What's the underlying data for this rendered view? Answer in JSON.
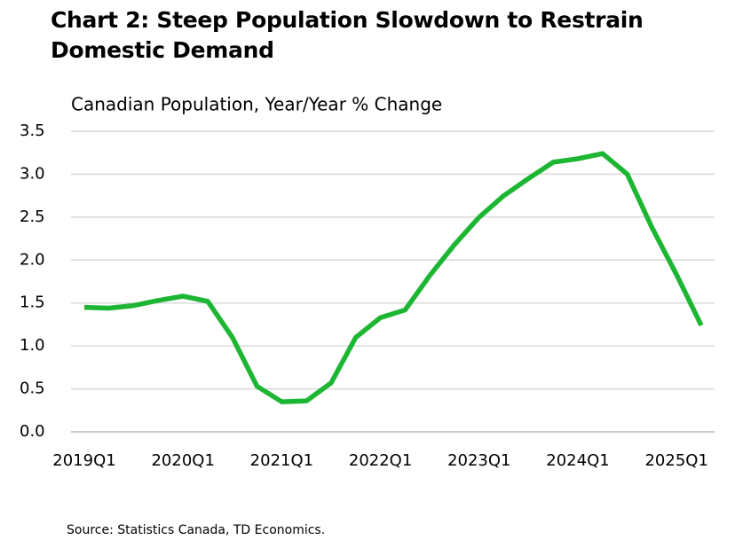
{
  "chart_data": {
    "type": "line",
    "title": "Chart 2: Steep Population Slowdown to Restrain Domestic Demand",
    "subtitle": "Canadian Population, Year/Year % Change",
    "source": "Source: Statistics Canada, TD Economics.",
    "categories": [
      "2019Q1",
      null,
      null,
      null,
      "2020Q1",
      null,
      null,
      null,
      "2021Q1",
      null,
      null,
      null,
      "2022Q1",
      null,
      null,
      null,
      "2023Q1",
      null,
      null,
      null,
      "2024Q1",
      null,
      null,
      null,
      "2025Q1",
      null
    ],
    "series": [
      {
        "name": "Canadian Population",
        "color": "#1db633",
        "values": [
          1.45,
          1.44,
          1.47,
          1.53,
          1.58,
          1.52,
          1.1,
          0.53,
          0.35,
          0.36,
          0.57,
          1.1,
          1.33,
          1.42,
          1.82,
          2.18,
          2.5,
          2.75,
          2.95,
          3.14,
          3.18,
          3.24,
          3.0,
          2.38,
          1.83,
          1.24
        ]
      }
    ],
    "ylim": [
      0,
      3.5
    ],
    "yticks": [
      {
        "value": 0,
        "label": "0.0"
      },
      0.5,
      {
        "value": 1,
        "label": "1.0"
      },
      1.5,
      {
        "value": 2,
        "label": "2.0"
      },
      2.5,
      {
        "value": 3,
        "label": "3.0"
      },
      3.5
    ],
    "grid": true
  }
}
